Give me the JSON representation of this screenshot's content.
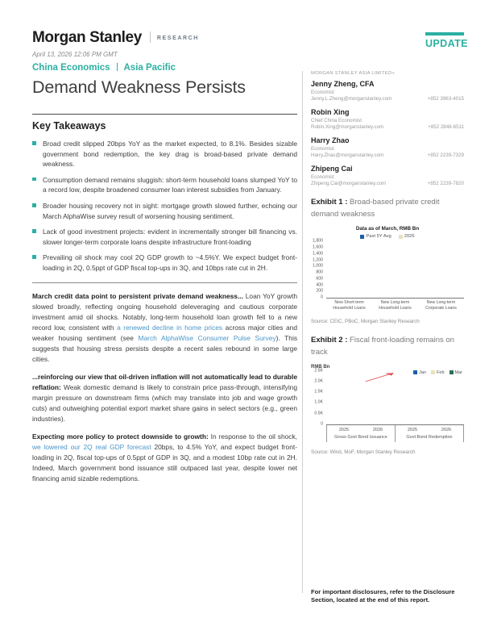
{
  "colors": {
    "accent_teal": "#2bb0a2",
    "link_blue": "#4a96c8",
    "bar_blue": "#1e5ea8",
    "bar_beige": "#e7e1c0",
    "bar_green": "#2c6e58",
    "arrow_red": "#e05252"
  },
  "header": {
    "brand": "Morgan Stanley",
    "brand_suffix": "RESEARCH",
    "date": "April 13, 2026 12:06 PM GMT",
    "section": "China Economics",
    "region": "Asia Pacific",
    "title": "Demand Weakness Persists",
    "update_badge": "UPDATE"
  },
  "sidebar": {
    "entity": "MORGAN STANLEY ASIA LIMITED+",
    "analysts": [
      {
        "name": "Jenny Zheng, CFA",
        "role": "Economist",
        "email": "Jenny.L.Zheng@morganstanley.com",
        "phone": "+852 3963-4015"
      },
      {
        "name": "Robin Xing",
        "role": "Chief China Economist",
        "email": "Robin.Xing@morganstanley.com",
        "phone": "+852 2848-6511"
      },
      {
        "name": "Harry Zhao",
        "role": "Economist",
        "email": "Harry.Zhao@morganstanley.com",
        "phone": "+852 2239-7329"
      },
      {
        "name": "Zhipeng Cai",
        "role": "Economist",
        "email": "Zhipeng.Cai@morganstanley.com",
        "phone": "+852 2239-7820"
      }
    ]
  },
  "key_takeaways": {
    "heading": "Key Takeaways",
    "bullets": [
      "Broad credit slipped 20bps YoY as the market expected, to 8.1%. Besides sizable government bond redemption, the key drag is broad-based private demand weakness.",
      "Consumption demand remains sluggish: short-term household loans slumped YoY to a record low, despite broadened consumer loan interest subsidies from January.",
      "Broader housing recovery not in sight: mortgage growth slowed further, echoing our March AlphaWise survey result of worsening housing sentiment.",
      "Lack of good investment projects: evident in incrementally stronger bill financing vs. slower longer-term corporate loans despite infrastructure front-loading",
      "Prevailing oil shock may cool 2Q GDP growth to ~4.5%Y. We expect budget front-loading in 2Q, 0.5ppt of GDP fiscal top-ups in 3Q, and 10bps rate cut in 2H."
    ]
  },
  "body_paragraphs": [
    {
      "segments": [
        {
          "t": "March credit data point to persistent private demand weakness...",
          "s": "b"
        },
        {
          "t": " Loan YoY growth slowed broadly, reflecting ongoing household deleveraging and cautious corporate investment amid oil shocks. Notably, long-term household loan growth fell to a new record low, consistent with ",
          "s": "p"
        },
        {
          "t": "a renewed decline in home prices",
          "s": "l"
        },
        {
          "t": " across major cities and weaker housing sentiment (see ",
          "s": "p"
        },
        {
          "t": "March AlphaWise Consumer Pulse Survey",
          "s": "l"
        },
        {
          "t": "). This suggests that housing stress persists despite a recent sales rebound in some large cities.",
          "s": "p"
        }
      ]
    },
    {
      "segments": [
        {
          "t": "...reinforcing our view that oil-driven inflation will not automatically lead to durable reflation:",
          "s": "b"
        },
        {
          "t": " Weak domestic demand is likely to constrain price pass-through, intensifying margin pressure on downstream firms (which may translate into job and wage growth cuts) and outweighing potential export market share gains in select sectors (e.g., green industries).",
          "s": "p"
        }
      ]
    },
    {
      "segments": [
        {
          "t": "Expecting more policy to protect downside to growth:",
          "s": "b"
        },
        {
          "t": " In response to the oil shock, ",
          "s": "p"
        },
        {
          "t": "we lowered our 2Q real GDP forecast",
          "s": "l"
        },
        {
          "t": " 20bps, to 4.5% YoY, and expect budget front-loading in 2Q, fiscal top-ups of 0.5ppt of GDP in 3Q, and a modest 10bp rate cut in 2H. Indeed, March government bond issuance still outpaced last year, despite lower net financing amid sizable redemptions.",
          "s": "p"
        }
      ]
    }
  ],
  "exhibit1": {
    "label": "Exhibit 1 :",
    "caption": "Broad-based private credit demand weakness",
    "source": "Source: CEIC, PBoC, Morgan Stanley Research"
  },
  "exhibit2": {
    "label": "Exhibit 2 :",
    "caption": "Fiscal front-loading remains on track",
    "source": "Source: Wind, MoF, Morgan Stanley Research"
  },
  "chart_data": [
    {
      "type": "bar",
      "title": "Data as of March, RMB Bn",
      "xlabel": "",
      "ylabel": "",
      "categories": [
        "New Short-term Household Loans",
        "New Long-term Household Loans",
        "New Long-term Corporate Loans"
      ],
      "series": [
        {
          "name": "Past 5Y Avg",
          "color": "#1e5ea8",
          "values": [
            500,
            520,
            1580
          ]
        },
        {
          "name": "2026",
          "color": "#e7e1c0",
          "values": [
            180,
            280,
            1330
          ]
        }
      ],
      "ylim": [
        0,
        1800
      ],
      "ytick_labels": [
        "0",
        "200",
        "400",
        "600",
        "800",
        "1,000",
        "1,200",
        "1,400",
        "1,600",
        "1,800"
      ],
      "grid": false,
      "legend_position": "top-center"
    },
    {
      "type": "bar",
      "title": "",
      "xlabel": "",
      "ylabel": "RMB Bn",
      "group_sections": [
        {
          "label": "Gross Govt Bond Issuance",
          "categories": [
            "2025",
            "2026"
          ]
        },
        {
          "label": "Govt Bond Redemption",
          "categories": [
            "2025",
            "2026"
          ]
        }
      ],
      "categories": [
        "2025",
        "2026",
        "2025",
        "2026"
      ],
      "series": [
        {
          "name": "Jan",
          "color": "#1e5ea8",
          "values": [
            1550,
            2050,
            630,
            900
          ]
        },
        {
          "name": "Feb",
          "color": "#e7e1c0",
          "values": [
            2250,
            2130,
            550,
            740
          ]
        },
        {
          "name": "Mar",
          "color": "#2c6e58",
          "values": [
            2270,
            2450,
            790,
            1480
          ]
        }
      ],
      "ylim": [
        0,
        2500
      ],
      "ytick_labels": [
        "0",
        "0.5K",
        "1.0K",
        "1.5K",
        "2.0K",
        "2.5K"
      ],
      "grid": false,
      "legend_position": "top-right",
      "annotation": {
        "type": "arrow",
        "color": "#e05252",
        "meaning": "2026 issuance front-loading rising vs 2025"
      }
    }
  ],
  "footer": {
    "disclosure": "For important disclosures, refer to the Disclosure Section, located at the end of this report."
  }
}
